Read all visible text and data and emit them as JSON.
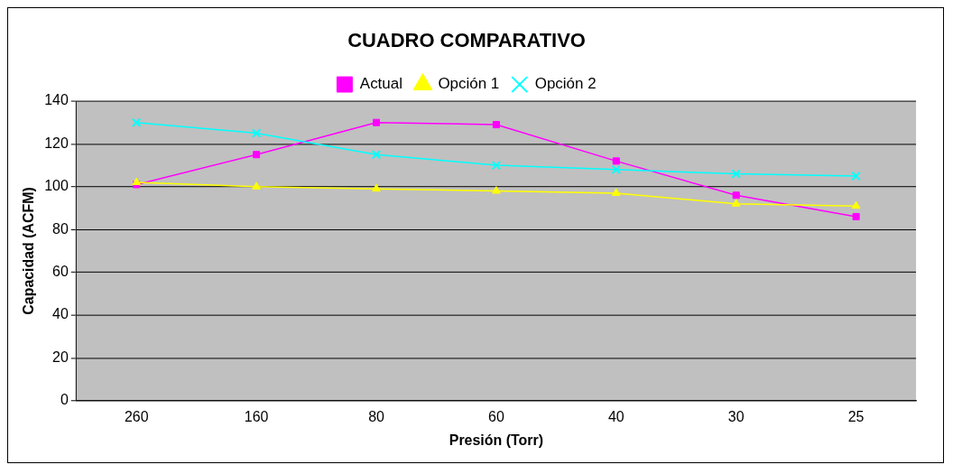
{
  "chart_data": {
    "type": "line",
    "title": "CUADRO COMPARATIVO",
    "xlabel": "Presión (Torr)",
    "ylabel": "Capacidad (ACFM)",
    "categories": [
      "260",
      "160",
      "80",
      "60",
      "40",
      "30",
      "25"
    ],
    "series": [
      {
        "name": "Actual",
        "color": "#ff00ff",
        "marker": "square",
        "values": [
          101,
          115,
          130,
          129,
          112,
          96,
          86
        ]
      },
      {
        "name": "Opción 1",
        "color": "#ffff00",
        "marker": "triangle",
        "values": [
          102,
          100,
          99,
          98,
          97,
          92,
          91
        ]
      },
      {
        "name": "Opción 2",
        "color": "#00ffff",
        "marker": "cross",
        "values": [
          130,
          125,
          115,
          110,
          108,
          106,
          105
        ]
      }
    ],
    "ylim": [
      0,
      140
    ],
    "yticks": [
      0,
      20,
      40,
      60,
      80,
      100,
      120,
      140
    ],
    "grid": "y",
    "legend": "top"
  }
}
